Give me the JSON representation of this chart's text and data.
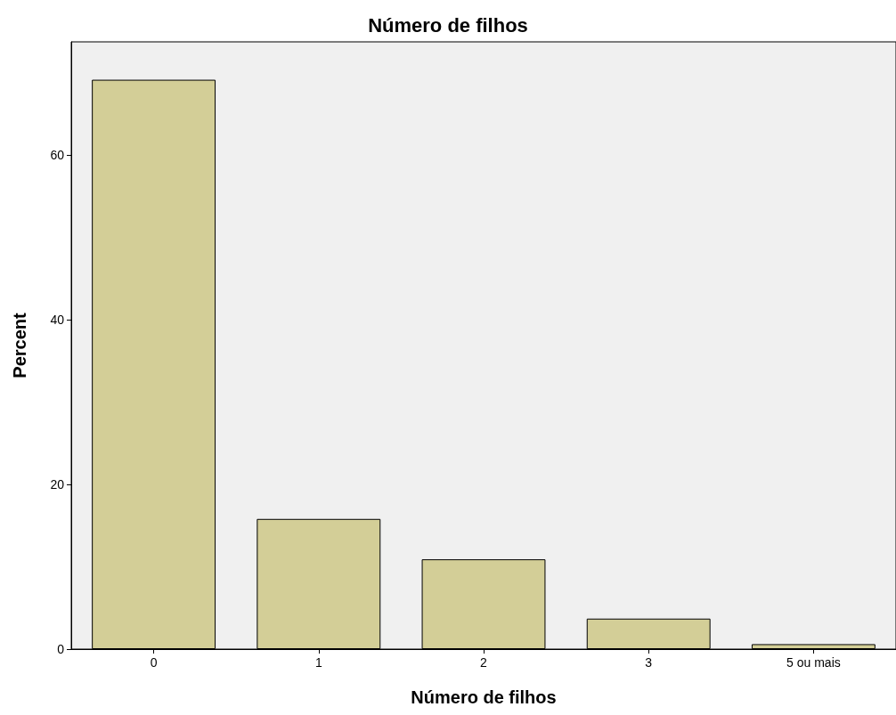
{
  "chart_data": {
    "type": "bar",
    "title": "Número de filhos",
    "xlabel": "Número de filhos",
    "ylabel": "Percent",
    "categories": [
      "0",
      "1",
      "2",
      "3",
      "5 ou mais"
    ],
    "values": [
      69.1,
      15.8,
      10.9,
      3.7,
      0.6
    ],
    "color": "#d3ce97",
    "ylim": [
      0,
      73.7
    ],
    "yticks": [
      0,
      20,
      40,
      60
    ],
    "grid": false
  }
}
